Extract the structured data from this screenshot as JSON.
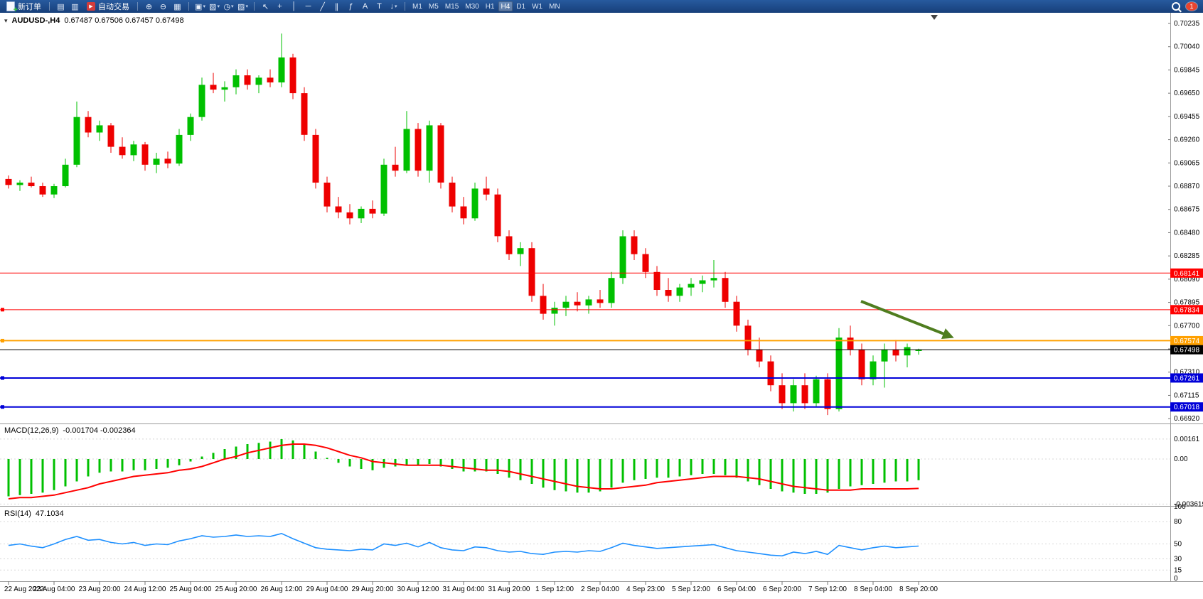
{
  "toolbar": {
    "new_order": {
      "label": "新订单"
    },
    "autotrade": {
      "label": "自动交易"
    },
    "groups": [
      {
        "name": "windows",
        "items": [
          {
            "name": "market-watch-icon",
            "glyph": "▤"
          },
          {
            "name": "data-window-icon",
            "glyph": "▥"
          }
        ]
      },
      {
        "name": "view",
        "items": [
          {
            "name": "zoom-in-icon",
            "glyph": "⊕"
          },
          {
            "name": "zoom-out-icon",
            "glyph": "⊖"
          },
          {
            "name": "tile-windows-icon",
            "glyph": "▦"
          }
        ]
      },
      {
        "name": "chart-mgmt",
        "items": [
          {
            "name": "new-chart-icon",
            "glyph": "▣",
            "caret": true
          },
          {
            "name": "profiles-icon",
            "glyph": "▧",
            "caret": true
          },
          {
            "name": "period-icon",
            "glyph": "◷",
            "caret": true
          },
          {
            "name": "template-icon",
            "glyph": "▨",
            "caret": true
          }
        ]
      },
      {
        "name": "drawing",
        "items": [
          {
            "name": "cursor-icon",
            "glyph": "↖"
          },
          {
            "name": "crosshair-icon",
            "glyph": "+"
          },
          {
            "name": "vertical-line-icon",
            "glyph": "│"
          },
          {
            "name": "horizontal-line-icon",
            "glyph": "─"
          },
          {
            "name": "trendline-icon",
            "glyph": "╱"
          },
          {
            "name": "channel-icon",
            "glyph": "∥"
          },
          {
            "name": "fibonacci-icon",
            "glyph": "ƒ"
          },
          {
            "name": "text-icon",
            "glyph": "A"
          },
          {
            "name": "label-icon",
            "glyph": "T"
          },
          {
            "name": "arrows-icon",
            "glyph": "↓",
            "caret": true
          }
        ]
      }
    ],
    "timeframes": {
      "items": [
        "M1",
        "M5",
        "M15",
        "M30",
        "H1",
        "H4",
        "D1",
        "W1",
        "MN"
      ],
      "active": "H4"
    },
    "notification_badge": "1"
  },
  "chart": {
    "title": "AUDUSD-,H4",
    "ohlc": "0.67487 0.67506 0.67457 0.67498",
    "dropdown_icon": "▾"
  },
  "indicators": {
    "macd": {
      "label": "MACD(12,26,9)",
      "values": "-0.001704 -0.002364"
    },
    "rsi": {
      "label": "RSI(14)",
      "value": "47.1034"
    }
  },
  "chart_data": [
    {
      "type": "candlestick",
      "symbol": "AUDUSD",
      "timeframe": "H4",
      "ohlc_current": {
        "open": 0.67487,
        "high": 0.67506,
        "low": 0.67457,
        "close": 0.67498
      },
      "colors": {
        "up": "#00C000",
        "down": "#EE0000"
      },
      "y_ticks": [
        "0.70235",
        "0.70040",
        "0.69845",
        "0.69650",
        "0.69455",
        "0.69260",
        "0.69065",
        "0.68870",
        "0.68675",
        "0.68480",
        "0.68285",
        "0.68090",
        "0.67895",
        "0.67700",
        "0.67505",
        "0.67310",
        "0.67115",
        "0.66920"
      ],
      "x_labels": [
        "22 Aug 2022",
        "23 Aug 04:00",
        "23 Aug 20:00",
        "24 Aug 12:00",
        "25 Aug 04:00",
        "25 Aug 20:00",
        "26 Aug 12:00",
        "29 Aug 04:00",
        "29 Aug 20:00",
        "30 Aug 12:00",
        "31 Aug 04:00",
        "31 Aug 20:00",
        "1 Sep 12:00",
        "2 Sep 04:00",
        "4 Sep 23:00",
        "5 Sep 12:00",
        "6 Sep 04:00",
        "6 Sep 20:00",
        "7 Sep 12:00",
        "8 Sep 04:00",
        "8 Sep 20:00"
      ],
      "candles_per_label": 4,
      "horizontal_lines": [
        {
          "value": 0.68141,
          "label": "0.68141",
          "color": "#FF0000",
          "width": 1,
          "handle": false
        },
        {
          "value": 0.67834,
          "label": "0.67834",
          "color": "#FF0000",
          "width": 1,
          "handle": true
        },
        {
          "value": 0.67574,
          "label": "0.67574",
          "color": "#FFA000",
          "width": 2,
          "handle": true
        },
        {
          "value": 0.67498,
          "label": "0.67498",
          "color": "#000000",
          "width": 1,
          "handle": false,
          "current": true
        },
        {
          "value": 0.67261,
          "label": "0.67261",
          "color": "#0000D8",
          "width": 2,
          "handle": true
        },
        {
          "value": 0.67018,
          "label": "0.67018",
          "color": "#0000D8",
          "width": 2,
          "handle": true
        }
      ],
      "annotation_arrow": {
        "color": "#4F7D1F",
        "direction": "down-right"
      },
      "candles": [
        [
          0.6893,
          0.6896,
          0.6885,
          0.6888
        ],
        [
          0.6888,
          0.6892,
          0.6883,
          0.689
        ],
        [
          0.689,
          0.6895,
          0.6886,
          0.6887
        ],
        [
          0.6887,
          0.689,
          0.6878,
          0.688
        ],
        [
          0.688,
          0.6889,
          0.6877,
          0.6887
        ],
        [
          0.6887,
          0.691,
          0.6886,
          0.6905
        ],
        [
          0.6905,
          0.6958,
          0.6903,
          0.6945
        ],
        [
          0.6945,
          0.695,
          0.6928,
          0.6932
        ],
        [
          0.6932,
          0.6942,
          0.6925,
          0.6938
        ],
        [
          0.6938,
          0.694,
          0.6915,
          0.692
        ],
        [
          0.692,
          0.6928,
          0.691,
          0.6913
        ],
        [
          0.6913,
          0.6925,
          0.6908,
          0.6922
        ],
        [
          0.6922,
          0.6924,
          0.69,
          0.6905
        ],
        [
          0.6905,
          0.6915,
          0.6898,
          0.691
        ],
        [
          0.691,
          0.6916,
          0.6902,
          0.6906
        ],
        [
          0.6906,
          0.6935,
          0.6904,
          0.693
        ],
        [
          0.693,
          0.6948,
          0.6925,
          0.6945
        ],
        [
          0.6945,
          0.6978,
          0.6942,
          0.6972
        ],
        [
          0.6972,
          0.6982,
          0.6965,
          0.6968
        ],
        [
          0.6968,
          0.6975,
          0.6958,
          0.697
        ],
        [
          0.697,
          0.6985,
          0.6964,
          0.698
        ],
        [
          0.698,
          0.6985,
          0.6968,
          0.6972
        ],
        [
          0.6972,
          0.698,
          0.6965,
          0.6978
        ],
        [
          0.6978,
          0.6985,
          0.697,
          0.6974
        ],
        [
          0.6974,
          0.7015,
          0.697,
          0.6995
        ],
        [
          0.6995,
          0.6998,
          0.696,
          0.6965
        ],
        [
          0.6965,
          0.697,
          0.6925,
          0.693
        ],
        [
          0.693,
          0.6935,
          0.6885,
          0.689
        ],
        [
          0.689,
          0.6895,
          0.6865,
          0.687
        ],
        [
          0.687,
          0.6878,
          0.686,
          0.6865
        ],
        [
          0.6865,
          0.6872,
          0.6855,
          0.686
        ],
        [
          0.686,
          0.687,
          0.6856,
          0.6868
        ],
        [
          0.6868,
          0.6875,
          0.686,
          0.6864
        ],
        [
          0.6864,
          0.691,
          0.6862,
          0.6905
        ],
        [
          0.6905,
          0.692,
          0.6895,
          0.69
        ],
        [
          0.69,
          0.695,
          0.6898,
          0.6935
        ],
        [
          0.6935,
          0.694,
          0.6895,
          0.69
        ],
        [
          0.69,
          0.6942,
          0.689,
          0.6938
        ],
        [
          0.6938,
          0.694,
          0.6885,
          0.689
        ],
        [
          0.689,
          0.6895,
          0.6865,
          0.687
        ],
        [
          0.687,
          0.6878,
          0.6855,
          0.686
        ],
        [
          0.686,
          0.689,
          0.6858,
          0.6885
        ],
        [
          0.6885,
          0.6895,
          0.6875,
          0.688
        ],
        [
          0.688,
          0.6885,
          0.684,
          0.6845
        ],
        [
          0.6845,
          0.685,
          0.6825,
          0.683
        ],
        [
          0.683,
          0.684,
          0.682,
          0.6835
        ],
        [
          0.6835,
          0.684,
          0.679,
          0.6795
        ],
        [
          0.6795,
          0.6805,
          0.6775,
          0.678
        ],
        [
          0.678,
          0.679,
          0.677,
          0.6785
        ],
        [
          0.6785,
          0.6795,
          0.6778,
          0.679
        ],
        [
          0.679,
          0.6798,
          0.6782,
          0.6787
        ],
        [
          0.6787,
          0.6795,
          0.678,
          0.6792
        ],
        [
          0.6792,
          0.68,
          0.6785,
          0.6789
        ],
        [
          0.6789,
          0.6815,
          0.6785,
          0.681
        ],
        [
          0.681,
          0.685,
          0.6805,
          0.6845
        ],
        [
          0.6845,
          0.685,
          0.6825,
          0.683
        ],
        [
          0.683,
          0.6835,
          0.681,
          0.6815
        ],
        [
          0.6815,
          0.682,
          0.6795,
          0.68
        ],
        [
          0.68,
          0.681,
          0.679,
          0.6795
        ],
        [
          0.6795,
          0.6805,
          0.679,
          0.6802
        ],
        [
          0.6802,
          0.681,
          0.6795,
          0.6805
        ],
        [
          0.6805,
          0.6812,
          0.6798,
          0.6808
        ],
        [
          0.6808,
          0.6825,
          0.6802,
          0.681
        ],
        [
          0.681,
          0.6815,
          0.6785,
          0.679
        ],
        [
          0.679,
          0.6795,
          0.6765,
          0.677
        ],
        [
          0.677,
          0.6775,
          0.6745,
          0.675
        ],
        [
          0.675,
          0.676,
          0.6735,
          0.674
        ],
        [
          0.674,
          0.6745,
          0.6715,
          0.672
        ],
        [
          0.672,
          0.673,
          0.67,
          0.6705
        ],
        [
          0.6705,
          0.6725,
          0.6698,
          0.672
        ],
        [
          0.672,
          0.673,
          0.67,
          0.6705
        ],
        [
          0.6705,
          0.6728,
          0.6702,
          0.6725
        ],
        [
          0.6725,
          0.673,
          0.6695,
          0.67
        ],
        [
          0.67,
          0.6768,
          0.6698,
          0.676
        ],
        [
          0.676,
          0.677,
          0.6745,
          0.675
        ],
        [
          0.675,
          0.6755,
          0.672,
          0.6725
        ],
        [
          0.6725,
          0.6745,
          0.672,
          0.674
        ],
        [
          0.674,
          0.6755,
          0.6718,
          0.675
        ],
        [
          0.675,
          0.6758,
          0.674,
          0.6745
        ],
        [
          0.6745,
          0.6755,
          0.6735,
          0.6752
        ],
        [
          0.67487,
          0.67506,
          0.67457,
          0.67498
        ]
      ]
    },
    {
      "type": "bar",
      "name": "MACD",
      "label": "MACD(12,26,9)",
      "current": [
        -0.001704,
        -0.002364
      ],
      "y_ticks": [
        "0.00161",
        "0.00",
        "-0.003619"
      ],
      "colors": {
        "histogram": "#00C000",
        "signal": "#FF0000"
      },
      "histogram": [
        -0.003,
        -0.0029,
        -0.0028,
        -0.0027,
        -0.0025,
        -0.0022,
        -0.0018,
        -0.0014,
        -0.0011,
        -0.001,
        -0.001,
        -0.0009,
        -0.0009,
        -0.0008,
        -0.0007,
        -0.0005,
        -0.0002,
        0.0002,
        0.0005,
        0.0008,
        0.001,
        0.0012,
        0.0013,
        0.0014,
        0.0016,
        0.0015,
        0.0012,
        0.0006,
        0.0001,
        -0.0003,
        -0.0006,
        -0.0008,
        -0.0009,
        -0.0007,
        -0.0006,
        -0.0005,
        -0.0005,
        -0.0004,
        -0.0006,
        -0.0008,
        -0.001,
        -0.001,
        -0.001,
        -0.0012,
        -0.0015,
        -0.0017,
        -0.002,
        -0.0023,
        -0.0025,
        -0.0026,
        -0.0027,
        -0.0027,
        -0.0026,
        -0.0023,
        -0.0019,
        -0.0017,
        -0.0016,
        -0.0015,
        -0.0015,
        -0.0014,
        -0.0013,
        -0.0012,
        -0.0012,
        -0.0013,
        -0.0015,
        -0.0018,
        -0.0021,
        -0.0024,
        -0.0026,
        -0.0027,
        -0.0028,
        -0.0028,
        -0.0027,
        -0.0024,
        -0.0022,
        -0.0021,
        -0.002,
        -0.0019,
        -0.0018,
        -0.0018,
        -0.001704
      ],
      "signal": [
        -0.0032,
        -0.0031,
        -0.0031,
        -0.003,
        -0.0029,
        -0.0027,
        -0.0025,
        -0.0023,
        -0.002,
        -0.0018,
        -0.0016,
        -0.0014,
        -0.0013,
        -0.0012,
        -0.0011,
        -0.0009,
        -0.0008,
        -0.0006,
        -0.0003,
        0.0,
        0.0002,
        0.0005,
        0.0007,
        0.0009,
        0.0011,
        0.0012,
        0.0012,
        0.0011,
        0.0009,
        0.0006,
        0.0003,
        0.0001,
        -0.0002,
        -0.0003,
        -0.0004,
        -0.0005,
        -0.0005,
        -0.0005,
        -0.0005,
        -0.0006,
        -0.0007,
        -0.0008,
        -0.0009,
        -0.0009,
        -0.001,
        -0.0012,
        -0.0014,
        -0.0016,
        -0.0018,
        -0.002,
        -0.0022,
        -0.0023,
        -0.0024,
        -0.0024,
        -0.0023,
        -0.0022,
        -0.0021,
        -0.0019,
        -0.0018,
        -0.0017,
        -0.0016,
        -0.0015,
        -0.0014,
        -0.0014,
        -0.0014,
        -0.0015,
        -0.0016,
        -0.0018,
        -0.002,
        -0.0022,
        -0.0023,
        -0.0024,
        -0.0025,
        -0.0025,
        -0.0025,
        -0.0024,
        -0.0024,
        -0.0024,
        -0.0024,
        -0.0024,
        -0.002364
      ]
    },
    {
      "type": "line",
      "name": "RSI",
      "label": "RSI(14)",
      "current": 47.1034,
      "color": "#1E90FF",
      "levels": [
        80,
        50,
        30,
        15
      ],
      "y_ticks": [
        "100",
        "80",
        "50",
        "30",
        "15",
        "0"
      ],
      "values": [
        48,
        50,
        47,
        45,
        50,
        56,
        60,
        55,
        56,
        52,
        50,
        52,
        48,
        50,
        49,
        54,
        57,
        61,
        59,
        60,
        62,
        60,
        61,
        60,
        64,
        57,
        51,
        45,
        43,
        42,
        41,
        43,
        42,
        50,
        48,
        51,
        46,
        52,
        45,
        42,
        41,
        46,
        45,
        41,
        39,
        40,
        37,
        36,
        39,
        40,
        39,
        41,
        40,
        45,
        51,
        48,
        46,
        44,
        45,
        46,
        47,
        48,
        49,
        45,
        41,
        39,
        37,
        35,
        34,
        39,
        37,
        40,
        36,
        48,
        45,
        42,
        45,
        47,
        45,
        46,
        47.1034
      ]
    }
  ]
}
